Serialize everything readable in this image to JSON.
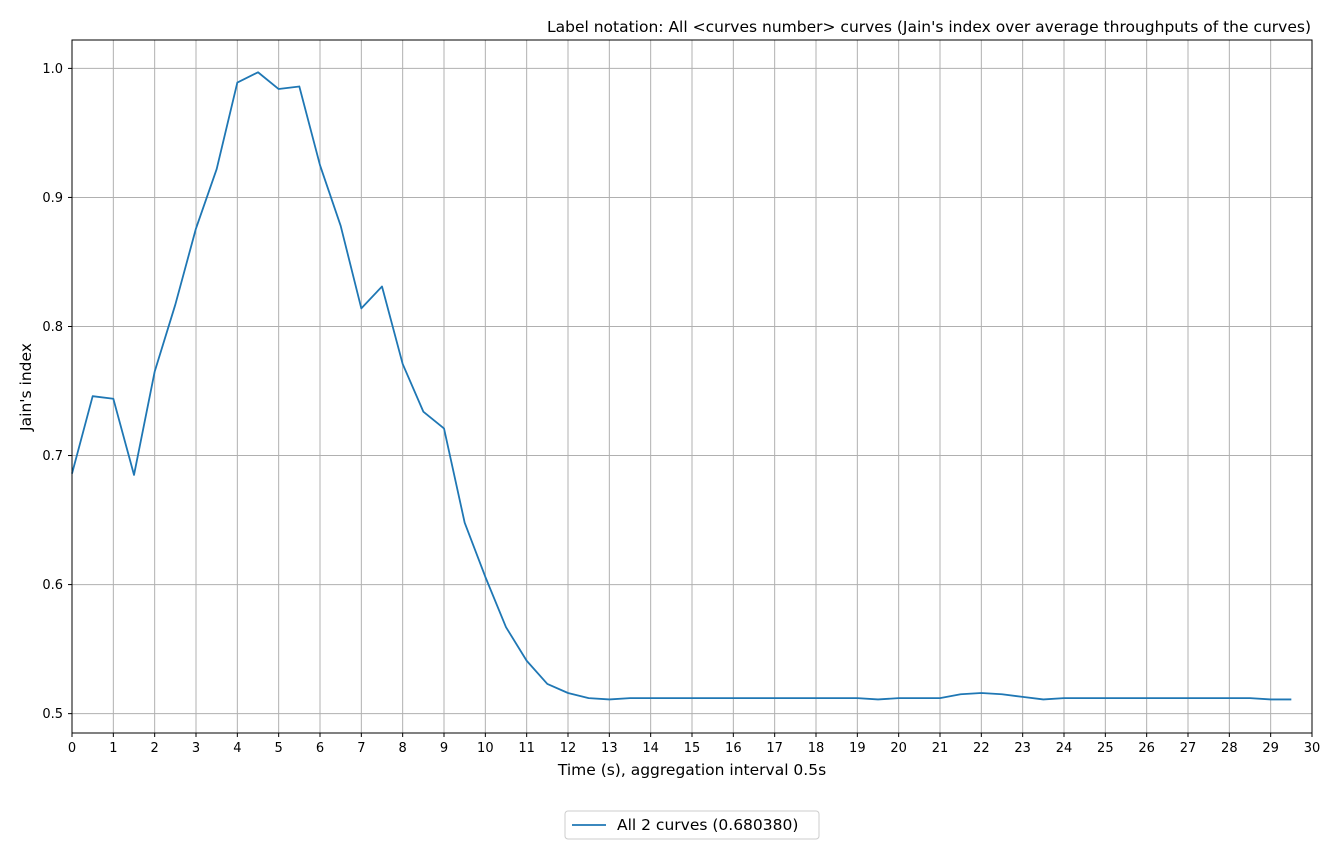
{
  "chart_data": {
    "type": "line",
    "title": "Label notation: All <curves number> curves (Jain's index over average throughputs of the curves)",
    "xlabel": "Time (s), aggregation interval 0.5s",
    "ylabel": "Jain's index",
    "xlim": [
      0,
      30
    ],
    "ylim": [
      0.485,
      1.022
    ],
    "xticks": [
      "0",
      "1",
      "2",
      "3",
      "4",
      "5",
      "6",
      "7",
      "8",
      "9",
      "10",
      "11",
      "12",
      "13",
      "14",
      "15",
      "16",
      "17",
      "18",
      "19",
      "20",
      "21",
      "22",
      "23",
      "24",
      "25",
      "26",
      "27",
      "28",
      "29",
      "30"
    ],
    "yticks": [
      "0.5",
      "0.6",
      "0.7",
      "0.8",
      "0.9",
      "1.0"
    ],
    "grid": true,
    "legend_position": "bottom-center",
    "series": [
      {
        "name": "All 2 curves (0.680380)",
        "color": "#1f77b4",
        "x": [
          0,
          0.5,
          1,
          1.5,
          2,
          2.5,
          3,
          3.5,
          4,
          4.5,
          5,
          5.5,
          6,
          6.5,
          7,
          7.5,
          8,
          8.5,
          9,
          9.5,
          10,
          10.5,
          11,
          11.5,
          12,
          12.5,
          13,
          13.5,
          14,
          14.5,
          15,
          15.5,
          16,
          16.5,
          17,
          17.5,
          18,
          18.5,
          19,
          19.5,
          20,
          20.5,
          21,
          21.5,
          22,
          22.5,
          23,
          23.5,
          24,
          24.5,
          25,
          25.5,
          26,
          26.5,
          27,
          27.5,
          28,
          28.5,
          29,
          29.5
        ],
        "y": [
          0.686,
          0.746,
          0.744,
          0.685,
          0.765,
          0.817,
          0.876,
          0.922,
          0.989,
          0.997,
          0.984,
          0.986,
          0.925,
          0.878,
          0.814,
          0.831,
          0.771,
          0.734,
          0.721,
          0.648,
          0.606,
          0.567,
          0.541,
          0.523,
          0.516,
          0.512,
          0.511,
          0.512,
          0.512,
          0.512,
          0.512,
          0.512,
          0.512,
          0.512,
          0.512,
          0.512,
          0.512,
          0.512,
          0.512,
          0.511,
          0.512,
          0.512,
          0.512,
          0.515,
          0.516,
          0.515,
          0.513,
          0.511,
          0.512,
          0.512,
          0.512,
          0.512,
          0.512,
          0.512,
          0.512,
          0.512,
          0.512,
          0.512,
          0.511,
          0.511
        ]
      }
    ]
  }
}
